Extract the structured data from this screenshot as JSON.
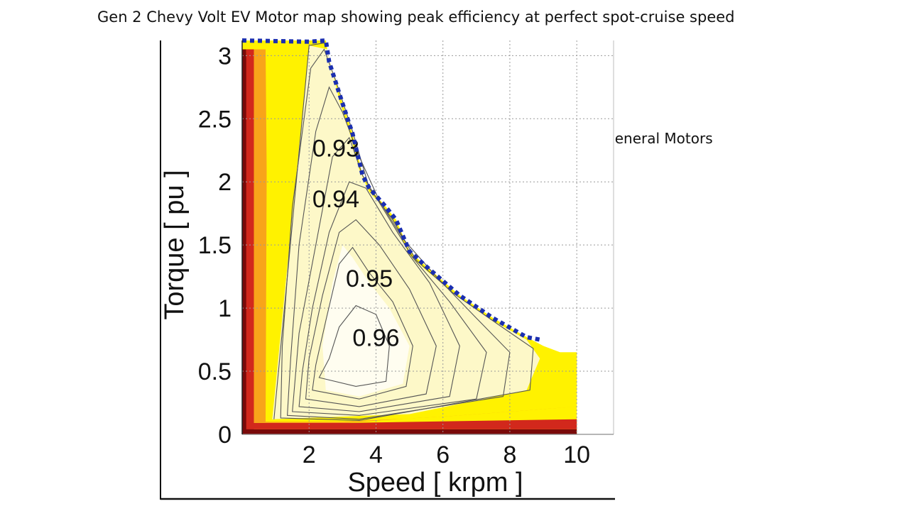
{
  "slide": {
    "title": "Gen 2 Chevy Volt EV Motor map showing peak efficiency at perfect spot-cruise speed",
    "credit": "Motor Map credit  General Motors"
  },
  "colors": {
    "peak": "#fffdf0",
    "high": "#fdf8c8",
    "yellow": "#fff200",
    "orange": "#f8a41a",
    "red": "#d2281c",
    "darkred": "#7a0a0a",
    "contour_line": "#555555",
    "envelope": "#1b2fb0"
  },
  "chart_data": {
    "type": "contour",
    "title": "",
    "xlabel": "Speed [ krpm ]",
    "ylabel": "Torque [ pu ]",
    "xlim": [
      0,
      11.1
    ],
    "ylim": [
      0,
      3.12
    ],
    "xticks": [
      2,
      4,
      6,
      8,
      10
    ],
    "yticks": [
      0,
      0.5,
      1,
      1.5,
      2,
      2.5,
      3
    ],
    "xtick_labels": [
      "2",
      "4",
      "6",
      "8",
      "10"
    ],
    "ytick_labels": [
      "0",
      "0.5",
      "1",
      "1.5",
      "2",
      "2.5",
      "3"
    ],
    "grid": true,
    "contour_labels": [
      {
        "text": "0.93",
        "x": 2.8,
        "y": 2.2
      },
      {
        "text": "0.94",
        "x": 2.8,
        "y": 1.8
      },
      {
        "text": "0.95",
        "x": 3.8,
        "y": 1.17
      },
      {
        "text": "0.96",
        "x": 4.0,
        "y": 0.7
      }
    ],
    "max_torque_envelope": [
      [
        0,
        3.12
      ],
      [
        2.0,
        3.11
      ],
      [
        2.5,
        3.12
      ],
      [
        2.6,
        2.95
      ],
      [
        3.0,
        2.62
      ],
      [
        3.3,
        2.38
      ],
      [
        3.6,
        2.05
      ],
      [
        3.8,
        1.95
      ],
      [
        4.3,
        1.8
      ],
      [
        4.6,
        1.7
      ],
      [
        5.0,
        1.45
      ],
      [
        5.5,
        1.33
      ],
      [
        6.5,
        1.1
      ],
      [
        7.5,
        0.92
      ],
      [
        8.5,
        0.77
      ],
      [
        8.9,
        0.75
      ]
    ],
    "operating_region": [
      [
        0,
        0
      ],
      [
        10,
        0
      ],
      [
        10,
        0.65
      ],
      [
        9.5,
        0.65
      ],
      [
        9.0,
        0.7
      ],
      [
        8.5,
        0.77
      ],
      [
        7.5,
        0.92
      ],
      [
        6.5,
        1.1
      ],
      [
        5.5,
        1.33
      ],
      [
        5.0,
        1.45
      ],
      [
        4.6,
        1.7
      ],
      [
        4.3,
        1.8
      ],
      [
        3.8,
        1.95
      ],
      [
        3.6,
        2.05
      ],
      [
        3.3,
        2.38
      ],
      [
        3.0,
        2.62
      ],
      [
        2.6,
        2.95
      ],
      [
        2.5,
        3.12
      ],
      [
        0,
        3.12
      ]
    ],
    "zones": [
      {
        "color_key": "darkred",
        "points": [
          [
            0,
            0
          ],
          [
            10,
            0
          ],
          [
            10,
            0.04
          ],
          [
            0.35,
            0.04
          ],
          [
            0.12,
            3.05
          ],
          [
            0,
            3.05
          ]
        ]
      },
      {
        "color_key": "red",
        "points": [
          [
            0.12,
            0.04
          ],
          [
            10,
            0.04
          ],
          [
            10,
            0.12
          ],
          [
            3,
            0.09
          ],
          [
            0.6,
            0.09
          ],
          [
            0.35,
            3.05
          ],
          [
            0.12,
            3.05
          ]
        ]
      },
      {
        "color_key": "orange",
        "points": [
          [
            0.35,
            0.09
          ],
          [
            3,
            0.09
          ],
          [
            10,
            0.22
          ],
          [
            10,
            0.22
          ],
          [
            6,
            0.14
          ],
          [
            3,
            0.1
          ],
          [
            0.8,
            0.1
          ],
          [
            0.7,
            3.05
          ],
          [
            0.35,
            3.05
          ]
        ]
      },
      {
        "color_key": "yellow",
        "points": [
          [
            0.7,
            0.1
          ],
          [
            3,
            0.1
          ],
          [
            6,
            0.14
          ],
          [
            10,
            0.22
          ],
          [
            10,
            0.65
          ],
          [
            9.5,
            0.65
          ],
          [
            9.0,
            0.7
          ],
          [
            8.5,
            0.77
          ],
          [
            7.5,
            0.92
          ],
          [
            6.5,
            1.1
          ],
          [
            5.5,
            1.33
          ],
          [
            5.0,
            1.45
          ],
          [
            4.6,
            1.7
          ],
          [
            4.3,
            1.8
          ],
          [
            3.8,
            1.95
          ],
          [
            3.6,
            2.05
          ],
          [
            3.3,
            2.38
          ],
          [
            3.0,
            2.62
          ],
          [
            2.6,
            2.95
          ],
          [
            2.5,
            3.12
          ],
          [
            1.8,
            3.12
          ],
          [
            0.75,
            3.05
          ]
        ]
      },
      {
        "color_key": "high",
        "points": [
          [
            0.9,
            0.12
          ],
          [
            5,
            0.16
          ],
          [
            8.5,
            0.35
          ],
          [
            8.9,
            0.6
          ],
          [
            8.5,
            0.75
          ],
          [
            7.5,
            0.9
          ],
          [
            6.5,
            1.08
          ],
          [
            5.5,
            1.3
          ],
          [
            5.0,
            1.42
          ],
          [
            4.6,
            1.65
          ],
          [
            4.3,
            1.78
          ],
          [
            3.8,
            1.92
          ],
          [
            3.5,
            2.1
          ],
          [
            3.2,
            2.4
          ],
          [
            2.9,
            2.65
          ],
          [
            2.55,
            3.05
          ],
          [
            2.0,
            3.08
          ]
        ]
      },
      {
        "color_key": "peak",
        "points": [
          [
            2.5,
            0.35
          ],
          [
            3.5,
            0.3
          ],
          [
            4.8,
            0.4
          ],
          [
            5.0,
            0.7
          ],
          [
            4.4,
            1.0
          ],
          [
            3.8,
            1.2
          ],
          [
            3.3,
            1.4
          ],
          [
            3.0,
            1.5
          ],
          [
            2.7,
            1.2
          ],
          [
            2.4,
            0.7
          ]
        ]
      }
    ],
    "contours": [
      {
        "level": "0.96",
        "points": [
          [
            2.3,
            0.45
          ],
          [
            3.4,
            0.38
          ],
          [
            4.3,
            0.42
          ],
          [
            4.4,
            0.7
          ],
          [
            4.0,
            0.95
          ],
          [
            3.4,
            1.02
          ],
          [
            2.9,
            0.85
          ],
          [
            2.6,
            0.6
          ]
        ]
      },
      {
        "level": "0.95",
        "points": [
          [
            2.1,
            0.35
          ],
          [
            3.5,
            0.28
          ],
          [
            4.9,
            0.38
          ],
          [
            5.1,
            0.7
          ],
          [
            4.5,
            1.05
          ],
          [
            3.8,
            1.28
          ],
          [
            3.3,
            1.48
          ],
          [
            2.9,
            1.35
          ],
          [
            2.5,
            0.9
          ],
          [
            2.2,
            0.55
          ]
        ]
      },
      {
        "level": "0.945",
        "points": [
          [
            1.9,
            0.28
          ],
          [
            3.5,
            0.22
          ],
          [
            5.5,
            0.32
          ],
          [
            5.8,
            0.7
          ],
          [
            5.0,
            1.15
          ],
          [
            4.1,
            1.5
          ],
          [
            3.4,
            1.7
          ],
          [
            2.9,
            1.6
          ],
          [
            2.4,
            1.1
          ],
          [
            2.0,
            0.6
          ]
        ]
      },
      {
        "level": "0.94",
        "points": [
          [
            1.7,
            0.22
          ],
          [
            3.5,
            0.18
          ],
          [
            6.2,
            0.3
          ],
          [
            6.5,
            0.7
          ],
          [
            5.6,
            1.2
          ],
          [
            4.5,
            1.6
          ],
          [
            3.7,
            1.95
          ],
          [
            3.2,
            2.0
          ],
          [
            2.6,
            1.6
          ],
          [
            2.1,
            1.0
          ],
          [
            1.8,
            0.5
          ]
        ]
      },
      {
        "level": "0.935",
        "points": [
          [
            1.5,
            0.18
          ],
          [
            3.5,
            0.15
          ],
          [
            7.0,
            0.28
          ],
          [
            7.3,
            0.65
          ],
          [
            6.2,
            1.05
          ],
          [
            5.1,
            1.4
          ],
          [
            4.3,
            1.75
          ],
          [
            3.6,
            2.05
          ],
          [
            3.2,
            2.35
          ],
          [
            2.7,
            2.2
          ],
          [
            2.2,
            1.5
          ],
          [
            1.7,
            0.8
          ]
        ]
      },
      {
        "level": "0.93",
        "points": [
          [
            1.35,
            0.15
          ],
          [
            3.5,
            0.12
          ],
          [
            7.8,
            0.3
          ],
          [
            8.0,
            0.65
          ],
          [
            7.0,
            0.92
          ],
          [
            5.8,
            1.25
          ],
          [
            4.8,
            1.55
          ],
          [
            4.1,
            1.85
          ],
          [
            3.5,
            2.2
          ],
          [
            3.0,
            2.55
          ],
          [
            2.6,
            2.75
          ],
          [
            2.2,
            2.4
          ],
          [
            1.7,
            1.5
          ],
          [
            1.45,
            0.6
          ]
        ]
      },
      {
        "level": "0.92",
        "points": [
          [
            1.15,
            0.13
          ],
          [
            3.5,
            0.11
          ],
          [
            8.6,
            0.35
          ],
          [
            8.7,
            0.68
          ],
          [
            7.6,
            0.88
          ],
          [
            6.3,
            1.12
          ],
          [
            5.2,
            1.38
          ],
          [
            4.5,
            1.7
          ],
          [
            3.8,
            1.95
          ],
          [
            3.3,
            2.4
          ],
          [
            2.8,
            2.8
          ],
          [
            2.45,
            3.05
          ],
          [
            2.05,
            2.9
          ],
          [
            1.5,
            1.8
          ],
          [
            1.2,
            0.7
          ]
        ]
      },
      {
        "level": "0.91",
        "points": [
          [
            0.95,
            0.12
          ],
          [
            2.0,
            3.08
          ],
          [
            2.45,
            3.1
          ]
        ]
      }
    ]
  }
}
